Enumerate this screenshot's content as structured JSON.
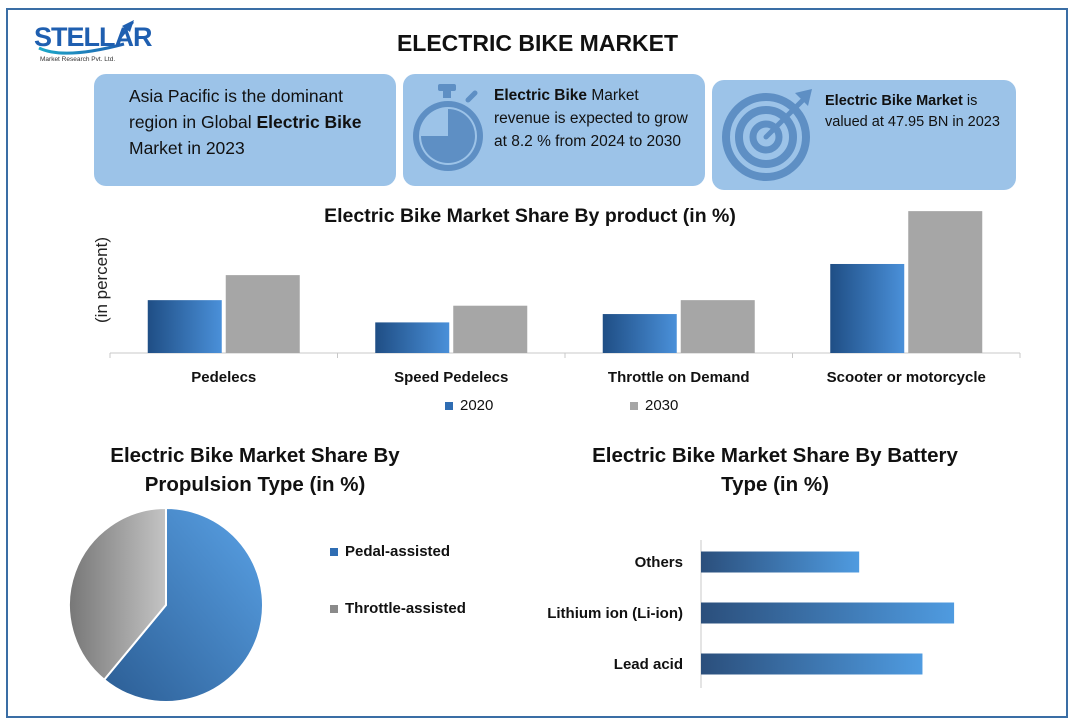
{
  "header": {
    "logo_text": "STELLAR",
    "logo_subtitle": "Market Research Pvt. Ltd.",
    "title": "ELECTRIC BIKE MARKET"
  },
  "cards": {
    "card1": {
      "pre": "Asia Pacific is the dominant region in Global ",
      "bold": "Electric Bike",
      "post": " Market in 2023"
    },
    "card2": {
      "bold": "Electric Bike",
      "post": " Market revenue is expected to grow at 8.2 % from 2024 to 2030",
      "icon": "stopwatch-icon"
    },
    "card3": {
      "bold": "Electric Bike Market",
      "post": " is valued at 47.95 BN in 2023",
      "icon": "target-icon"
    }
  },
  "colors": {
    "card_bg": "#9cc3e8",
    "blue_dark": "#1f4e85",
    "blue_light": "#4a90d9",
    "gray": "#a6a6a6",
    "frame": "#3a6ea5"
  },
  "chart_data": [
    {
      "type": "bar",
      "title": "Electric Bike Market Share By product (in %)",
      "ylabel": "(in percent)",
      "categories": [
        "Pedelecs",
        "Speed Pedelecs",
        "Throttle on Demand",
        "Scooter or motorcycle"
      ],
      "series": [
        {
          "name": "2020",
          "values": [
            19,
            11,
            14,
            32
          ]
        },
        {
          "name": "2030",
          "values": [
            28,
            17,
            19,
            51
          ]
        }
      ],
      "ylim": [
        0,
        55
      ],
      "grid": false,
      "legend": "bottom"
    },
    {
      "type": "pie",
      "title": "Electric Bike Market Share By Propulsion Type (in %)",
      "labels": [
        "Pedal-assisted",
        "Throttle-assisted"
      ],
      "values": [
        61,
        39
      ],
      "legend": "right"
    },
    {
      "type": "bar",
      "orientation": "horizontal",
      "title": "Electric Bike Market Share By Battery Type (in %)",
      "categories": [
        "Others",
        "Lithium ion (Li-ion)",
        "Lead acid"
      ],
      "values": [
        30,
        48,
        42
      ],
      "xlim": [
        0,
        55
      ]
    }
  ]
}
